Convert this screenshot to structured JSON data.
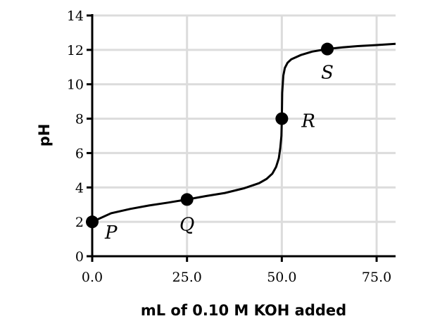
{
  "chart_data": {
    "type": "line",
    "xlabel": "mL of 0.10 M KOH added",
    "ylabel": "pH",
    "xlim": [
      0,
      80
    ],
    "ylim": [
      0,
      14
    ],
    "x_ticks": [
      0,
      25,
      50,
      75
    ],
    "x_tick_labels": [
      "0.0",
      "25.0",
      "50.0",
      "75.0"
    ],
    "y_ticks": [
      0,
      2,
      4,
      6,
      8,
      10,
      12,
      14
    ],
    "y_tick_labels": [
      "0",
      "2",
      "4",
      "6",
      "8",
      "10",
      "12",
      "14"
    ],
    "grid": true,
    "series": [
      {
        "x": [
          0,
          5,
          10,
          15,
          20,
          25,
          30,
          35,
          40,
          44,
          46,
          47.5,
          48.5,
          49.2,
          49.6,
          49.9,
          50.0,
          50.1,
          50.4,
          50.8,
          51.5,
          52.5,
          55,
          58,
          62,
          66,
          70,
          75,
          80
        ],
        "y": [
          2.0,
          2.5,
          2.75,
          2.95,
          3.12,
          3.3,
          3.5,
          3.68,
          3.95,
          4.25,
          4.5,
          4.8,
          5.2,
          5.7,
          6.3,
          7.0,
          8.0,
          9.5,
          10.5,
          10.95,
          11.25,
          11.45,
          11.7,
          11.9,
          12.05,
          12.15,
          12.22,
          12.28,
          12.35
        ]
      }
    ],
    "points": [
      {
        "label": "P",
        "x": 0,
        "y": 2.0
      },
      {
        "label": "Q",
        "x": 25,
        "y": 3.3
      },
      {
        "label": "R",
        "x": 50,
        "y": 8.0
      },
      {
        "label": "S",
        "x": 62,
        "y": 12.05
      }
    ]
  }
}
